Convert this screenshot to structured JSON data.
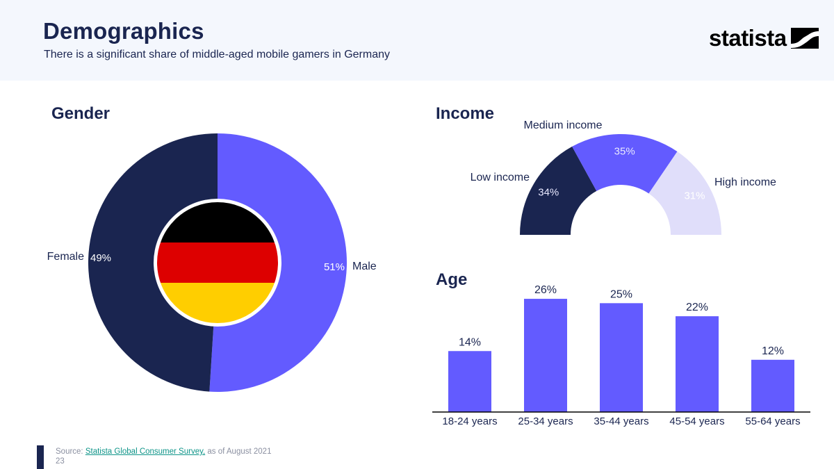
{
  "header": {
    "title": "Demographics",
    "subtitle": "There is a significant share of middle-aged mobile gamers in Germany",
    "logo_text": "statista"
  },
  "colors": {
    "navy": "#1a2550",
    "purple": "#635bff",
    "lavender": "#e0defa",
    "header_bg": "#f4f7fd",
    "flag_black": "#000000",
    "flag_red": "#dd0000",
    "flag_gold": "#ffce00"
  },
  "gender": {
    "title": "Gender",
    "icon": "germany-flag-icon"
  },
  "income": {
    "title": "Income"
  },
  "age": {
    "title": "Age"
  },
  "chart_data": [
    {
      "type": "pie",
      "title": "Gender",
      "variant": "donut",
      "series": [
        {
          "name": "Male",
          "value": 51,
          "label": "51%",
          "color": "#635bff"
        },
        {
          "name": "Female",
          "value": 49,
          "label": "49%",
          "color": "#1a2550"
        }
      ]
    },
    {
      "type": "pie",
      "title": "Income",
      "variant": "semi-donut",
      "series": [
        {
          "name": "Low income",
          "value": 34,
          "label": "34%",
          "color": "#1a2550"
        },
        {
          "name": "Medium income",
          "value": 35,
          "label": "35%",
          "color": "#635bff"
        },
        {
          "name": "High income",
          "value": 31,
          "label": "31%",
          "color": "#e0defa"
        }
      ]
    },
    {
      "type": "bar",
      "title": "Age",
      "categories": [
        "18-24 years",
        "25-34 years",
        "35-44 years",
        "45-54 years",
        "55-64 years"
      ],
      "values": [
        14,
        26,
        25,
        22,
        12
      ],
      "labels": [
        "14%",
        "26%",
        "25%",
        "22%",
        "12%"
      ],
      "color": "#635bff",
      "ylim": [
        0,
        30
      ],
      "grid": false
    }
  ],
  "footer": {
    "source_prefix": "Source: ",
    "source_link": "Statista Global Consumer Survey,",
    "source_suffix": " as of August 2021",
    "page_number": "23"
  }
}
